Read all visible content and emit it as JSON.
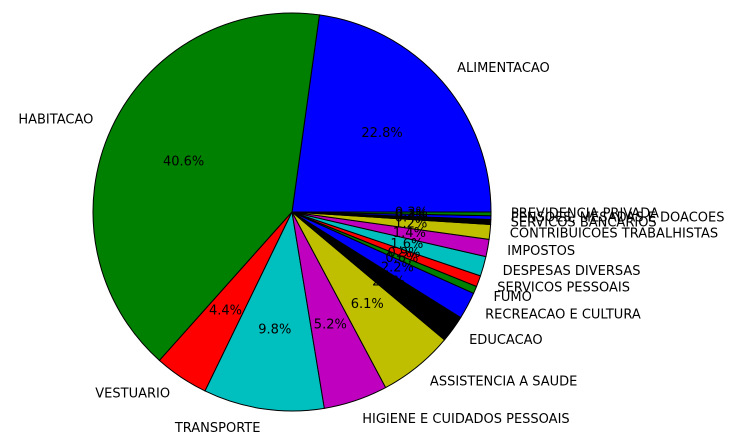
{
  "chart_data": {
    "type": "pie",
    "categories": [
      "ALIMENTACAO",
      "HABITACAO",
      "VESTUARIO",
      "TRANSPORTE",
      "HIGIENE E CUIDADOS PESSOAIS",
      "ASSISTENCIA A SAUDE",
      "EDUCACAO",
      "RECREACAO E CULTURA",
      "FUMO",
      "SERVICOS PESSOAIS",
      "DESPESAS DIVERSAS",
      "IMPOSTOS",
      "CONTRIBUICOES TRABALHISTAS",
      "SERVICOS BANCARIOS",
      "PENSOES, MESADAS E DOACOES",
      "PREVIDENCIA PRIVADA"
    ],
    "values": [
      22.8,
      40.6,
      4.4,
      9.8,
      5.2,
      6.1,
      2.2,
      2.2,
      0.6,
      0.9,
      1.6,
      1.4,
      1.2,
      0.4,
      0.3,
      0.3
    ],
    "value_labels": [
      "22.8%",
      "40.6%",
      "4.4%",
      "9.8%",
      "5.2%",
      "6.1%",
      "2.2%",
      "2.2%",
      "0.6%",
      "0.9%",
      "1.6%",
      "1.4%",
      "1.2%",
      "0.4%",
      "0.3%",
      "0.3%"
    ],
    "colors": [
      "#0000ff",
      "#008000",
      "#ff0000",
      "#00bfbf",
      "#bf00bf",
      "#bfbf00",
      "#000000",
      "#0000ff",
      "#008000",
      "#ff0000",
      "#00bfbf",
      "#bf00bf",
      "#bfbf00",
      "#000000",
      "#0000ff",
      "#008000"
    ]
  }
}
